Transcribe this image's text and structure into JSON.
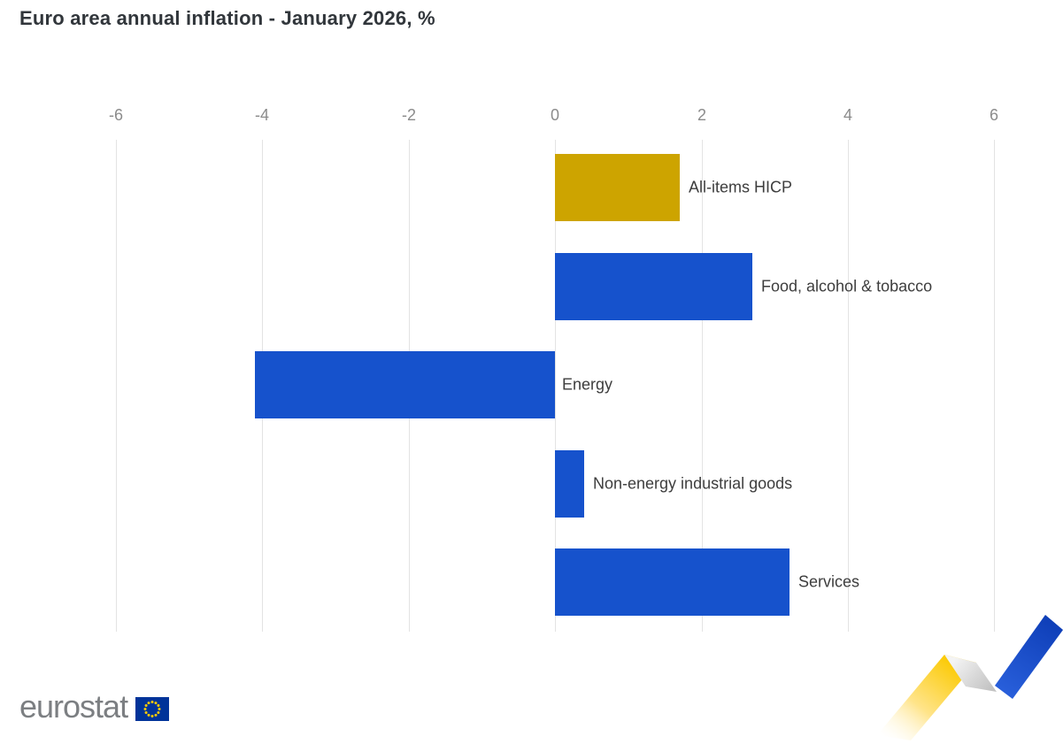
{
  "title": "Euro area annual inflation - January 2026, %",
  "chart_data": {
    "type": "bar",
    "orientation": "horizontal",
    "title": "Euro area annual inflation - January 2026, %",
    "categories": [
      "All-items HICP",
      "Food, alcohol & tobacco",
      "Energy",
      "Non-energy industrial goods",
      "Services"
    ],
    "values": [
      1.7,
      2.7,
      -4.1,
      0.4,
      3.2
    ],
    "bar_colors": [
      "#cda400",
      "#1652cc",
      "#1652cc",
      "#1652cc",
      "#1652cc"
    ],
    "xlim": [
      -6,
      6
    ],
    "x_ticks": [
      -6,
      -4,
      -2,
      0,
      2,
      4,
      6
    ],
    "grid": "vertical-gridlines",
    "axis_position": "top",
    "legend": "none",
    "xlabel": "",
    "ylabel": ""
  },
  "colors": {
    "highlight_bar": "#cda400",
    "default_bar": "#1652cc",
    "gridline": "#e3e3e3",
    "tick_label": "#8b8b8b",
    "category_label": "#3d3d3d",
    "title_text": "#31363b",
    "logo_gray": "#7c7f82",
    "eu_flag_blue": "#003399",
    "eu_flag_stars": "#ffcc00",
    "ribbon_yellow": "#fbc900",
    "ribbon_gray": "#c8c8c8",
    "ribbon_blue": "#1b4fc8"
  },
  "footer": {
    "logo_text": "eurostat"
  }
}
